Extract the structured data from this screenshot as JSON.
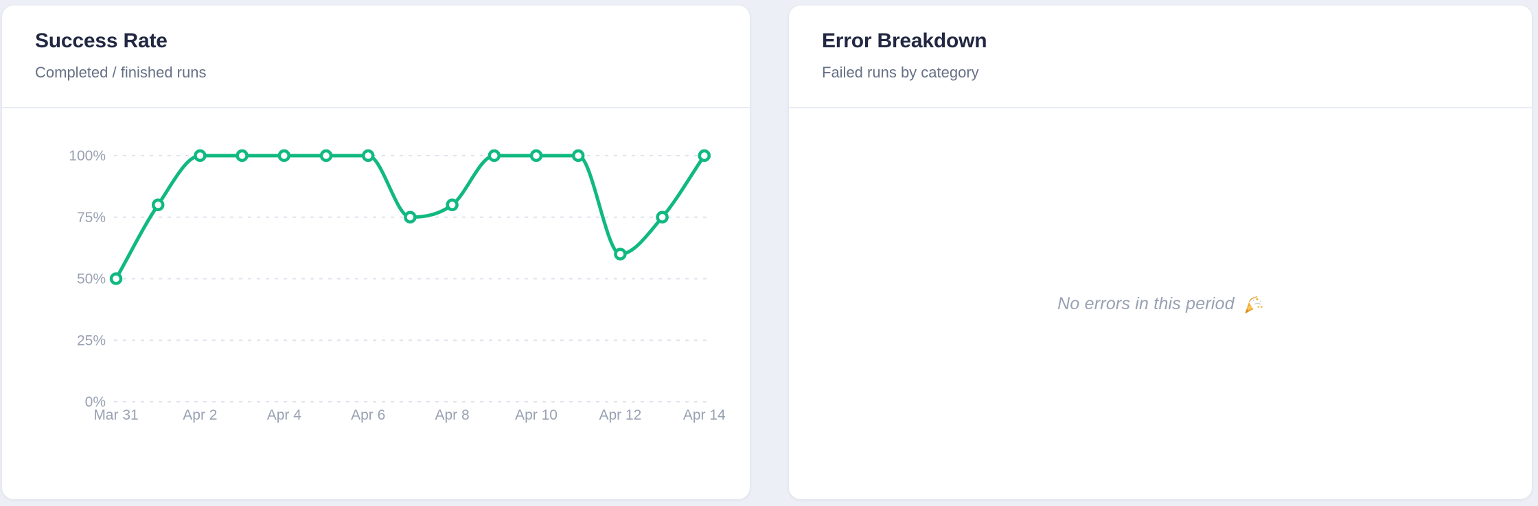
{
  "page": {
    "background_color": "#edeff6"
  },
  "cards": {
    "success_rate": {
      "title": "Success Rate",
      "subtitle": "Completed / finished runs"
    },
    "error_breakdown": {
      "title": "Error Breakdown",
      "subtitle": "Failed runs by category",
      "empty_state": {
        "message": "No errors in this period",
        "emoji": "🎉",
        "emoji_icon": "party-popper-icon"
      }
    }
  },
  "chart_data": {
    "type": "line",
    "title": "Success Rate",
    "x": [
      "Mar 31",
      "Apr 1",
      "Apr 2",
      "Apr 3",
      "Apr 4",
      "Apr 5",
      "Apr 6",
      "Apr 7",
      "Apr 8",
      "Apr 9",
      "Apr 10",
      "Apr 11",
      "Apr 12",
      "Apr 13",
      "Apr 14"
    ],
    "series": [
      {
        "name": "Success Rate",
        "values": [
          50,
          80,
          100,
          100,
          100,
          100,
          100,
          75,
          80,
          100,
          100,
          100,
          60,
          75,
          100
        ]
      }
    ],
    "unit": "%",
    "ylim": [
      0,
      100
    ],
    "y_ticks": [
      100,
      75,
      50,
      25,
      0
    ],
    "y_tick_labels": [
      "100%",
      "75%",
      "50%",
      "25%",
      "0%"
    ],
    "x_tick_labels": [
      "Mar 31",
      "Apr 2",
      "Apr 4",
      "Apr 6",
      "Apr 8",
      "Apr 10",
      "Apr 12",
      "Apr 14"
    ],
    "x_tick_every": 2,
    "grid": "horizontal-dashed",
    "legend": "none",
    "curve": "monotone",
    "line_color": "#10b981",
    "marker_fill": "#ffffff",
    "grid_color": "#dfe3ec",
    "axis_label_color": "#98a1b2"
  }
}
